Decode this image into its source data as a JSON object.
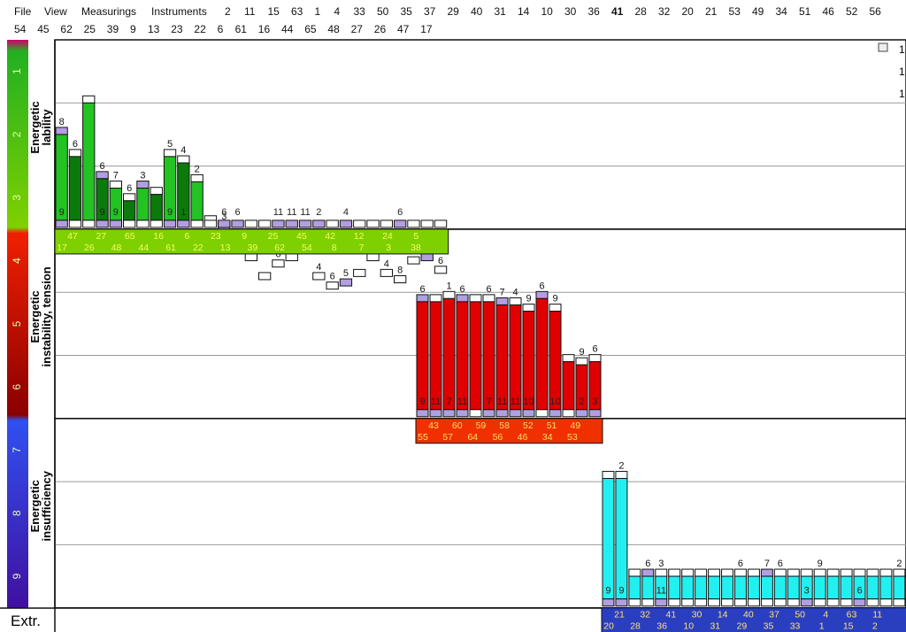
{
  "menu": {
    "items": [
      "File",
      "View",
      "Measurings",
      "Instruments"
    ],
    "row1_numbers": [
      "2",
      "11",
      "15",
      "63",
      "1",
      "4",
      "33",
      "50",
      "35",
      "37",
      "29",
      "40",
      "31",
      "14",
      "10",
      "30",
      "36",
      "41",
      "28",
      "32",
      "20",
      "21",
      "53",
      "49",
      "34",
      "51",
      "46",
      "52",
      "56"
    ],
    "row1_active": "41",
    "row2_numbers": [
      "54",
      "45",
      "62",
      "25",
      "39",
      "9",
      "13",
      "23",
      "22",
      "6",
      "61",
      "16",
      "44",
      "65",
      "48",
      "27",
      "26",
      "47",
      "17"
    ]
  },
  "colors": {
    "lability_dark": "#0a7a0a",
    "lability_light": "#22c322",
    "tension": "#e00000",
    "insufficiency": "#22f0f0",
    "cap_purple": "#b29ee0",
    "label_band_green": "#7fd000",
    "label_band_red": "#f03000",
    "label_band_blue": "#2a3fc0"
  },
  "chart_data": {
    "type": "bar",
    "zones": [
      {
        "name": "Energetic lability",
        "levels": [
          "1",
          "2",
          "3"
        ]
      },
      {
        "name": "Energetic instability, tension",
        "levels": [
          "4",
          "5",
          "6"
        ]
      },
      {
        "name": "Energetic insufficiency",
        "levels": [
          "7",
          "8",
          "9"
        ]
      }
    ],
    "extra_label": "Extr.",
    "groups": [
      {
        "zone": "Energetic lability",
        "top_labels": [
          "8",
          "6",
          "",
          "6",
          "7",
          "6",
          "3",
          "",
          "5",
          "4",
          "2",
          "",
          "3",
          "4",
          "6",
          "",
          "6",
          "10",
          "6",
          "4",
          "6",
          "5",
          "",
          "",
          "4",
          "8",
          "4",
          "5",
          "6"
        ],
        "values": [
          2.5,
          2.85,
          2.0,
          3.2,
          3.35,
          3.55,
          3.35,
          3.45,
          2.85,
          2.95,
          3.25,
          3.9,
          4.0,
          4.25,
          4.5,
          4.8,
          4.6,
          4.5,
          4.3,
          4.8,
          4.95,
          4.9,
          4.75,
          4.5,
          4.75,
          4.85,
          4.55,
          4.5,
          4.7
        ],
        "bottom_labels": [
          "9",
          "",
          "",
          "9",
          "9",
          "",
          "",
          "",
          "9",
          "1",
          "",
          "",
          "6",
          "6",
          "",
          "",
          "11",
          "11",
          "11",
          "2",
          "",
          "4",
          "",
          "",
          "",
          "6",
          "",
          "",
          ""
        ],
        "axis_row1": [
          "47",
          "27",
          "65",
          "16",
          "6",
          "23",
          "9",
          "25",
          "45",
          "42",
          "12",
          "24",
          "5"
        ],
        "axis_row2": [
          "17",
          "26",
          "48",
          "44",
          "61",
          "22",
          "13",
          "39",
          "62",
          "54",
          "8",
          "7",
          "3",
          "38"
        ]
      },
      {
        "zone": "Energetic instability, tension",
        "top_labels": [
          "6",
          "",
          "1",
          "6",
          "",
          "6",
          "7",
          "4",
          "9",
          "6",
          "9",
          "",
          "9",
          "6"
        ],
        "values": [
          5.15,
          5.15,
          5.1,
          5.15,
          5.15,
          5.15,
          5.2,
          5.2,
          5.3,
          5.1,
          5.3,
          6.1,
          6.15,
          6.1
        ],
        "bottom_labels": [
          "9",
          "11",
          "7",
          "11",
          "",
          "7",
          "11",
          "11",
          "10",
          "",
          "10",
          "",
          "2",
          "3"
        ],
        "axis_row1": [
          "43",
          "60",
          "59",
          "58",
          "52",
          "51",
          "49"
        ],
        "axis_row2": [
          "55",
          "57",
          "64",
          "56",
          "46",
          "34",
          "53"
        ]
      },
      {
        "zone": "Energetic insufficiency",
        "top_labels": [
          "",
          "2",
          "",
          "6",
          "3",
          "",
          "",
          "",
          "",
          "",
          "6",
          "",
          "7",
          "6",
          "",
          "",
          "9",
          "",
          "",
          "",
          "",
          "",
          "2"
        ],
        "values": [
          7.95,
          7.95,
          9.5,
          9.5,
          9.5,
          9.5,
          9.5,
          9.5,
          9.5,
          9.5,
          9.5,
          9.5,
          9.5,
          9.5,
          9.5,
          9.5,
          9.5,
          9.5,
          9.5,
          9.5,
          9.5,
          9.5,
          9.5
        ],
        "bottom_labels": [
          "9",
          "9",
          "",
          "",
          "11",
          "",
          "",
          "",
          "",
          "",
          "",
          "",
          "",
          "",
          "",
          "3",
          "",
          "",
          "",
          "6",
          "",
          "",
          ""
        ],
        "axis_row1": [
          "21",
          "32",
          "41",
          "30",
          "14",
          "40",
          "37",
          "50",
          "4",
          "63",
          "11"
        ],
        "axis_row2": [
          "20",
          "28",
          "36",
          "10",
          "31",
          "29",
          "35",
          "33",
          "1",
          "15",
          "2"
        ]
      }
    ],
    "right_margin_labels": [
      "1",
      "1",
      "1"
    ]
  }
}
